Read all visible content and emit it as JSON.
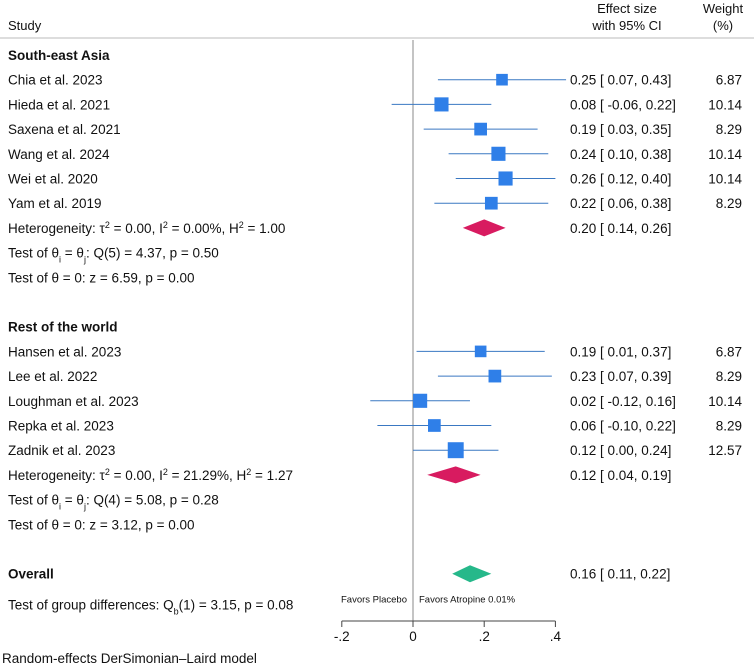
{
  "chart_data": {
    "type": "forest",
    "headers": {
      "study": "Study",
      "effect_line1": "Effect size",
      "effect_line2": "with 95% CI",
      "weight_line1": "Weight",
      "weight_line2": "(%)"
    },
    "xaxis": {
      "min": -0.2,
      "max": 0.4,
      "ticks": [
        -0.2,
        0,
        0.2,
        0.4
      ],
      "tick_labels": [
        "-.2",
        "0",
        ".2",
        ".4"
      ],
      "null_line": 0
    },
    "favors_left": "Favors Placebo",
    "favors_right": "Favors Atropine 0.01%",
    "groups": [
      {
        "name": "South-east Asia",
        "studies": [
          {
            "label": "Chia et al. 2023",
            "es": 0.25,
            "lo": 0.07,
            "hi": 0.43,
            "weight": 6.87,
            "ci_text": "0.25 [  0.07,  0.43]",
            "weight_text": "6.87"
          },
          {
            "label": "Hieda et al. 2021",
            "es": 0.08,
            "lo": -0.06,
            "hi": 0.22,
            "weight": 10.14,
            "ci_text": "0.08 [ -0.06,  0.22]",
            "weight_text": "10.14"
          },
          {
            "label": "Saxena et al. 2021",
            "es": 0.19,
            "lo": 0.03,
            "hi": 0.35,
            "weight": 8.29,
            "ci_text": "0.19 [  0.03,  0.35]",
            "weight_text": "8.29"
          },
          {
            "label": "Wang et al. 2024",
            "es": 0.24,
            "lo": 0.1,
            "hi": 0.38,
            "weight": 10.14,
            "ci_text": "0.24 [  0.10,  0.38]",
            "weight_text": "10.14"
          },
          {
            "label": "Wei et al. 2020",
            "es": 0.26,
            "lo": 0.12,
            "hi": 0.4,
            "weight": 10.14,
            "ci_text": "0.26 [  0.12,  0.40]",
            "weight_text": "10.14"
          },
          {
            "label": "Yam et al. 2019",
            "es": 0.22,
            "lo": 0.06,
            "hi": 0.38,
            "weight": 8.29,
            "ci_text": "0.22 [  0.06,  0.38]",
            "weight_text": "8.29"
          }
        ],
        "heterogeneity_prefix": "Heterogeneity: τ",
        "heterogeneity_mid1": " = 0.00, I",
        "heterogeneity_mid2": " = 0.00%, H",
        "heterogeneity_end": " = 1.00",
        "pooled": {
          "es": 0.2,
          "lo": 0.14,
          "hi": 0.26,
          "ci_text": "0.20 [  0.14,  0.26]"
        },
        "test_theta_prefix": "Test of θ",
        "test_theta_mid": " = θ",
        "test_theta_end": ": Q(5) = 4.37, p = 0.50",
        "test_zero": "Test of θ = 0: z = 6.59, p = 0.00"
      },
      {
        "name": "Rest of the world",
        "studies": [
          {
            "label": "Hansen et al. 2023",
            "es": 0.19,
            "lo": 0.01,
            "hi": 0.37,
            "weight": 6.87,
            "ci_text": "0.19 [  0.01,  0.37]",
            "weight_text": "6.87"
          },
          {
            "label": "Lee et al. 2022",
            "es": 0.23,
            "lo": 0.07,
            "hi": 0.39,
            "weight": 8.29,
            "ci_text": "0.23 [  0.07,  0.39]",
            "weight_text": "8.29"
          },
          {
            "label": "Loughman et al. 2023",
            "es": 0.02,
            "lo": -0.12,
            "hi": 0.16,
            "weight": 10.14,
            "ci_text": "0.02 [ -0.12,  0.16]",
            "weight_text": "10.14"
          },
          {
            "label": "Repka et al. 2023",
            "es": 0.06,
            "lo": -0.1,
            "hi": 0.22,
            "weight": 8.29,
            "ci_text": "0.06 [ -0.10,  0.22]",
            "weight_text": "8.29"
          },
          {
            "label": "Zadnik et al. 2023",
            "es": 0.12,
            "lo": 0.0,
            "hi": 0.24,
            "weight": 12.57,
            "ci_text": "0.12 [  0.00,  0.24]",
            "weight_text": "12.57"
          }
        ],
        "heterogeneity_prefix": "Heterogeneity: τ",
        "heterogeneity_mid1": " = 0.00, I",
        "heterogeneity_mid2": " = 21.29%, H",
        "heterogeneity_end": " = 1.27",
        "pooled": {
          "es": 0.12,
          "lo": 0.04,
          "hi": 0.19,
          "ci_text": "0.12 [  0.04,  0.19]"
        },
        "test_theta_prefix": "Test of θ",
        "test_theta_mid": " = θ",
        "test_theta_end": ": Q(4) = 5.08, p = 0.28",
        "test_zero": "Test of θ = 0: z = 3.12, p = 0.00"
      }
    ],
    "overall": {
      "label": "Overall",
      "es": 0.16,
      "lo": 0.11,
      "hi": 0.22,
      "ci_text": "0.16 [  0.11,  0.22]"
    },
    "group_test_prefix": "Test of group differences: Q",
    "group_test_sub": "b",
    "group_test_end": "(1) = 3.15, p = 0.08",
    "footnote": "Random-effects DerSimonian–Laird model",
    "colors": {
      "marker": "#2f7fe8",
      "ci_line": "#3a78c2",
      "subgroup_diamond": "#d81b60",
      "overall_diamond": "#26b88a",
      "axis": "#444444",
      "null_line": "#8a8a8a"
    }
  }
}
